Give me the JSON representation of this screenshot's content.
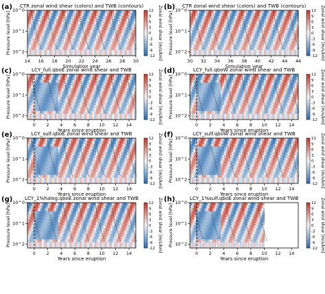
{
  "figure": {
    "colorbar_label": "Zonal wind shear [m/s/km]",
    "y_axis_label": "Pressure level [hPa]",
    "colormap": {
      "negative": "#2b6cb0",
      "neutral": "#f7f7f7",
      "positive": "#c0392b"
    }
  },
  "chart_data": [
    {
      "panel_letter": "(a)",
      "title": "CTR zonal wind shear (colors) and TWB (contours)",
      "type": "heatmap",
      "xlabel": "Simulation year",
      "xticks": [
        "14",
        "16",
        "18",
        "20",
        "22",
        "24",
        "26",
        "28",
        "30"
      ],
      "xlim": [
        14,
        30
      ],
      "ylabel": "Pressure level [hPa]",
      "yticks": [
        "10^0",
        "10^1",
        "10^2"
      ],
      "ylim_hPa": [
        1,
        150
      ],
      "log_y": true,
      "colorbar": {
        "label": "Zonal wind shear [m/s/km]",
        "ticks": [
          12,
          9,
          6,
          3,
          0,
          -3,
          -6,
          -9,
          -12
        ]
      },
      "eruption_line": false,
      "data_end": 30
    },
    {
      "panel_letter": "(b)",
      "title": "CTR zonal wind shear (colors) and TWB (contours)",
      "type": "heatmap",
      "xlabel": "Simulation year",
      "xticks": [
        "30",
        "32",
        "34",
        "36",
        "38",
        "40",
        "42",
        "44",
        "46"
      ],
      "xlim": [
        30,
        46
      ],
      "ylabel": "Pressure level [hPa]",
      "yticks": [
        "10^0",
        "10^1",
        "10^2"
      ],
      "ylim_hPa": [
        1,
        150
      ],
      "log_y": true,
      "colorbar": {
        "label": "Zonal wind shear [m/s/km]",
        "ticks": [
          12,
          9,
          6,
          3,
          0,
          -3,
          -6,
          -9,
          -12
        ]
      },
      "eruption_line": false,
      "data_end": 46
    },
    {
      "panel_letter": "(c)",
      "title": "LCY_full.qboE zonal wind shear and TWB",
      "type": "heatmap",
      "xlabel": "Years since eruption",
      "xticks": [
        "0",
        "2",
        "4",
        "6",
        "8",
        "10",
        "12",
        "14"
      ],
      "xlim": [
        -1,
        15
      ],
      "ylabel": "Pressure level [hPa]",
      "yticks": [
        "10^0",
        "10^1",
        "10^2"
      ],
      "ylim_hPa": [
        1,
        150
      ],
      "log_y": true,
      "colorbar": {
        "label": "Zonal wind shear [m/s/km]",
        "ticks": [
          12,
          9,
          6,
          3,
          0,
          -3,
          -6,
          -9,
          -12
        ]
      },
      "eruption_line": true,
      "data_end": 15
    },
    {
      "panel_letter": "(d)",
      "title": "LCY_full.qboW zonal wind shear and TWB",
      "type": "heatmap",
      "xlabel": "Years since eruption",
      "xticks": [
        "0",
        "2",
        "4",
        "6",
        "8",
        "10",
        "12",
        "14"
      ],
      "xlim": [
        -1,
        15
      ],
      "ylabel": "Pressure level [hPa]",
      "yticks": [
        "10^0",
        "10^1",
        "10^2"
      ],
      "ylim_hPa": [
        1,
        150
      ],
      "log_y": true,
      "colorbar": {
        "label": "Zonal wind shear [m/s/km]",
        "ticks": [
          12,
          9,
          6,
          3,
          0,
          -3,
          -6,
          -9,
          -12
        ]
      },
      "eruption_line": true,
      "data_end": 15
    },
    {
      "panel_letter": "(e)",
      "title": "LCY_sulf.qboE zonal wind shear and TWB",
      "type": "heatmap",
      "xlabel": "Years since eruption",
      "xticks": [
        "0",
        "2",
        "4",
        "6",
        "8",
        "10",
        "12",
        "14"
      ],
      "xlim": [
        -1,
        15
      ],
      "ylabel": "Pressure level [hPa]",
      "yticks": [
        "10^0",
        "10^1",
        "10^2"
      ],
      "ylim_hPa": [
        1,
        150
      ],
      "log_y": true,
      "colorbar": {
        "label": "Zonal wind shear [m/s/km]",
        "ticks": [
          12,
          9,
          6,
          3,
          0,
          -3,
          -6,
          -9,
          -12
        ]
      },
      "eruption_line": true,
      "data_end": 15
    },
    {
      "panel_letter": "(f)",
      "title": "LCY_sulf.qboW zonal wind shear and TWB",
      "type": "heatmap",
      "xlabel": "Years since eruption",
      "xticks": [
        "0",
        "2",
        "4",
        "6",
        "8",
        "10",
        "12",
        "14"
      ],
      "xlim": [
        -1,
        15
      ],
      "ylabel": "Pressure level [hPa]",
      "yticks": [
        "10^0",
        "10^1",
        "10^2"
      ],
      "ylim_hPa": [
        1,
        150
      ],
      "log_y": true,
      "colorbar": {
        "label": "Zonal wind shear [m/s/km]",
        "ticks": [
          12,
          9,
          6,
          3,
          0,
          -3,
          -6,
          -9,
          -12
        ]
      },
      "eruption_line": true,
      "data_end": 15
    },
    {
      "panel_letter": "(g)",
      "title": "LCY_1%halog.qboE zonal wind shear and TWB",
      "type": "heatmap",
      "xlabel": "Years since eruption",
      "xticks": [
        "0",
        "2",
        "4",
        "6",
        "8",
        "10",
        "12",
        "14"
      ],
      "xlim": [
        -1,
        15
      ],
      "ylabel": "Pressure level [hPa]",
      "yticks": [
        "10^0",
        "10^1",
        "10^2"
      ],
      "ylim_hPa": [
        1,
        150
      ],
      "log_y": true,
      "colorbar": {
        "label": "Zonal wind shear [m/s/km]",
        "ticks": [
          12,
          9,
          6,
          3,
          0,
          -3,
          -6,
          -9,
          -12
        ]
      },
      "eruption_line": true,
      "data_end": 15
    },
    {
      "panel_letter": "(h)",
      "title": "LCY_1%sulf.qboE zonal wind shear and TWB",
      "type": "heatmap",
      "xlabel": "Years since eruption",
      "xticks": [
        "0",
        "2",
        "4",
        "6",
        "8",
        "10",
        "12",
        "14"
      ],
      "xlim": [
        -1,
        15
      ],
      "ylabel": "Pressure level [hPa]",
      "yticks": [
        "10^0",
        "10^1",
        "10^2"
      ],
      "ylim_hPa": [
        1,
        150
      ],
      "log_y": true,
      "colorbar": {
        "label": "Zonal wind shear [m/s/km]",
        "ticks": [
          12,
          9,
          6,
          3,
          0,
          -3,
          -6,
          -9,
          -12
        ]
      },
      "eruption_line": true,
      "data_end": 10
    }
  ]
}
